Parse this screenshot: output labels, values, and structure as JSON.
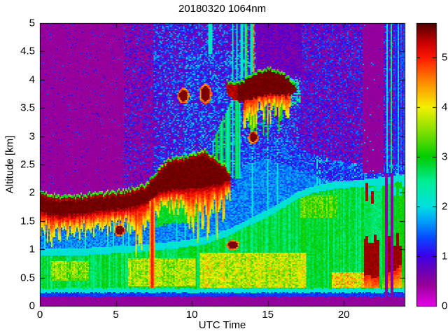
{
  "chart_data": {
    "type": "heatmap",
    "title": "20180320 1064nm",
    "xlabel": "UTC Time",
    "ylabel": "Altitude [km]",
    "xlim": [
      0,
      24
    ],
    "ylim": [
      0,
      5
    ],
    "x_ticks": [
      0,
      5,
      10,
      15,
      20
    ],
    "y_ticks": [
      0,
      0.5,
      1,
      1.5,
      2,
      2.5,
      3,
      3.5,
      4,
      4.5,
      5
    ],
    "grid": false,
    "legend": "colorbar-right",
    "colorbar": {
      "ticks": [
        0,
        1,
        2,
        3,
        4,
        5
      ],
      "vmin": 0,
      "vmax": 5.69
    },
    "colormap_stops": [
      [
        0.0,
        230,
        0,
        230
      ],
      [
        0.42,
        150,
        0,
        152
      ],
      [
        0.75,
        100,
        0,
        190
      ],
      [
        1.0,
        60,
        0,
        235
      ],
      [
        1.35,
        10,
        70,
        255
      ],
      [
        1.7,
        0,
        160,
        250
      ],
      [
        2.0,
        0,
        225,
        225
      ],
      [
        2.5,
        0,
        238,
        150
      ],
      [
        3.0,
        0,
        205,
        0
      ],
      [
        3.55,
        140,
        225,
        0
      ],
      [
        4.0,
        245,
        240,
        0
      ],
      [
        4.5,
        255,
        140,
        0
      ],
      [
        5.0,
        255,
        25,
        0
      ],
      [
        5.3,
        200,
        0,
        0
      ],
      [
        5.69,
        80,
        0,
        0
      ]
    ],
    "summary": "Lidar backscatter time-height curtain, 1064 nm, 2018-03-20. Dark-red aerosol layer 1.6-2.1 km rising to 2.0-2.7 km by 08-12 UTC with red fall streaks; detached cloud band 3.6-4.2 km between 12.3-16.8 UTC; green boundary layer 0.3-1.0 km deepening to ~2.1 km by evening; attenuated purple column 21.2-22.6 UTC above 2.3 km; precipitation streaks with dark-red cores 0.5-1.3 km from 21.3-24 UTC; thin cyan near-surface band at ~0.25 km all day.",
    "layers": {
      "surface": {
        "blind_top_km": 0.17,
        "blind_value": 0.45,
        "blue_band": [
          0.17,
          0.235,
          1.25
        ],
        "cyan_band": [
          0.235,
          0.31,
          2.05
        ]
      },
      "boundary_layer": {
        "top_km_points": [
          [
            0,
            0.88
          ],
          [
            3,
            0.9
          ],
          [
            6,
            0.95
          ],
          [
            9,
            1.02
          ],
          [
            11,
            1.1
          ],
          [
            12.5,
            1.25
          ],
          [
            14,
            1.45
          ],
          [
            15.5,
            1.65
          ],
          [
            17,
            1.9
          ],
          [
            18,
            2.0
          ],
          [
            19.5,
            2.08
          ],
          [
            21,
            2.1
          ],
          [
            24,
            2.2
          ]
        ],
        "value": 2.85,
        "cyan_rim_value": 2.1
      },
      "blue_zone": {
        "value": 1.3,
        "top_points_afternoon": [
          [
            12.55,
            2.35
          ],
          [
            13.5,
            2.9
          ],
          [
            15,
            3.0
          ],
          [
            17,
            2.8
          ],
          [
            19,
            2.6
          ],
          [
            21.25,
            2.5
          ],
          [
            24,
            2.5
          ]
        ]
      },
      "yellow_patches": [
        [
          0.7,
          3.2,
          0.45,
          0.78,
          0.9
        ],
        [
          5.8,
          10.2,
          0.35,
          0.85,
          1.1
        ],
        [
          10.5,
          17.5,
          0.31,
          0.95,
          1.25
        ],
        [
          19.2,
          21.35,
          0.31,
          0.6,
          1.7
        ],
        [
          17.2,
          19.6,
          1.55,
          1.95,
          0.55
        ]
      ],
      "elevated_layer": {
        "t_end": 12.55,
        "value": 5.58,
        "top_points": [
          [
            0,
            1.98
          ],
          [
            1.5,
            1.9
          ],
          [
            3,
            1.93
          ],
          [
            4.5,
            1.97
          ],
          [
            6,
            2.03
          ],
          [
            7,
            2.12
          ],
          [
            7.7,
            2.35
          ],
          [
            8.4,
            2.55
          ],
          [
            9.2,
            2.6
          ],
          [
            10,
            2.63
          ],
          [
            10.8,
            2.72
          ],
          [
            11.4,
            2.62
          ],
          [
            12,
            2.5
          ],
          [
            12.55,
            2.32
          ]
        ],
        "bottom_points": [
          [
            0,
            1.62
          ],
          [
            1.5,
            1.55
          ],
          [
            3,
            1.6
          ],
          [
            4.5,
            1.65
          ],
          [
            6,
            1.7
          ],
          [
            7,
            1.78
          ],
          [
            7.7,
            1.95
          ],
          [
            8.4,
            2.0
          ],
          [
            9.2,
            2.02
          ],
          [
            10,
            2.02
          ],
          [
            10.8,
            2.05
          ],
          [
            11.4,
            2.1
          ],
          [
            12,
            2.12
          ],
          [
            12.55,
            2.2
          ]
        ],
        "base_fringe": 0.3,
        "deep_fringe_ranges": [
          [
            0,
            1.4,
            0.35
          ],
          [
            6.25,
            7.6,
            0.95
          ],
          [
            9.7,
            12.2,
            0.8
          ]
        ]
      },
      "green_collar": {
        "t0": 7.7,
        "t1": 10.3,
        "dz_below": 0.55,
        "value": 2.9
      },
      "morning_streak": {
        "t0": 7.22,
        "t1": 7.55,
        "z_bottom": 0.31,
        "value": 4.3
      },
      "plume": {
        "t0": 11.35,
        "t1": 13.3,
        "z_base": 2.25,
        "top_points": [
          [
            11.35,
            2.9
          ],
          [
            12.0,
            3.3
          ],
          [
            12.6,
            3.6
          ],
          [
            13.3,
            3.85
          ]
        ]
      },
      "cloud_band": {
        "t0": 12.3,
        "t1": 16.85,
        "value": 5.58,
        "top_points": [
          [
            12.3,
            3.95
          ],
          [
            13.0,
            3.9
          ],
          [
            13.6,
            4.0
          ],
          [
            14.3,
            4.1
          ],
          [
            15.2,
            4.16
          ],
          [
            15.8,
            4.1
          ],
          [
            16.4,
            4.0
          ],
          [
            16.85,
            3.88
          ]
        ],
        "bottom_points": [
          [
            12.3,
            3.76
          ],
          [
            13.0,
            3.6
          ],
          [
            13.8,
            3.64
          ],
          [
            14.6,
            3.7
          ],
          [
            15.4,
            3.74
          ],
          [
            16.2,
            3.7
          ],
          [
            16.85,
            3.8
          ]
        ],
        "fringe": {
          "t0": 13.35,
          "t1": 16.5,
          "max_depth": 0.45
        },
        "wisps": {
          "t0": 16.5,
          "t1": 17.15,
          "z0": 3.55,
          "z1": 4.0
        }
      },
      "blobs": [
        [
          9.45,
          3.72,
          0.28,
          0.1
        ],
        [
          10.9,
          3.75,
          0.3,
          0.13
        ],
        [
          14.05,
          2.98,
          0.25,
          0.08
        ],
        [
          5.25,
          1.34,
          0.28,
          0.08
        ],
        [
          12.7,
          1.08,
          0.3,
          0.07
        ]
      ],
      "above_cloud_streaks": {
        "t0": 12.65,
        "t1": 14.1
      },
      "upper_left_streaks": {
        "t0": 11.05,
        "t1": 11.5,
        "z0": 4.45
      },
      "attenuated_column": {
        "t0": 21.25,
        "t1": 22.65,
        "z_bottom": 2.35,
        "value": 0.45
      },
      "tall_streaks": [
        [
          22.78,
          22.92,
          2.0
        ],
        [
          23.05,
          23.2,
          2.6
        ],
        [
          23.5,
          23.62,
          1.9
        ]
      ],
      "precip": {
        "t0": 21.3,
        "z_top": 2.35,
        "gap_fraction": 0.14,
        "core_value": 5.45,
        "red_clusters": [
          [
            21.35,
            22.35,
            0.6,
            1.2
          ],
          [
            22.7,
            23.85,
            0.62,
            1.15
          ]
        ],
        "spike_cluster": [
          21.4,
          22.65,
          1.9,
          2.3
        ]
      },
      "background": {
        "base": 0.42,
        "regions": [
          [
            0,
            5.5,
            0.06,
            0.9
          ],
          [
            5.5,
            7.5,
            0.5,
            1.0
          ],
          [
            7.5,
            17.2,
            0.95,
            1.35
          ],
          [
            17.2,
            21.25,
            0.8,
            1.05
          ],
          [
            21.25,
            24,
            0.85,
            1.1
          ]
        ],
        "blue_patch": [
          9.5,
          16.5,
          2.2,
          4.5,
          0.3
        ],
        "magenta_patch": [
          14.2,
          17.3,
          4.05,
          5.0
        ],
        "right_edge_streaks_t": 23.35
      }
    }
  }
}
